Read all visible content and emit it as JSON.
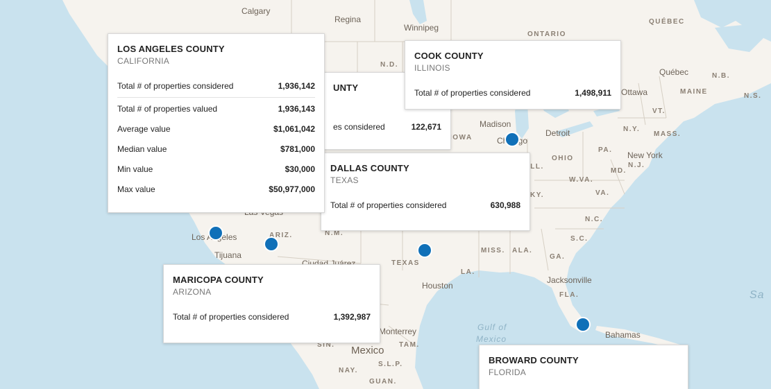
{
  "map_labels": {
    "cities": [
      "Calgary",
      "Regina",
      "Winnipeg",
      "Québec",
      "Ottawa",
      "Madison",
      "Chicago",
      "Detroit",
      "New York",
      "Las Vegas",
      "Los Angeles",
      "Tijuana",
      "Ciudad Juárez",
      "Houston",
      "Monterrey",
      "Jacksonville",
      "Bahamas"
    ],
    "states": [
      "ONTARIO",
      "QUÉBEC",
      "N.D.",
      "N.B.",
      "N.S.",
      "MAINE",
      "VT.",
      "N.Y.",
      "MASS.",
      "PA.",
      "OHIO",
      "N.J.",
      "W.VA.",
      "MD.",
      "VA.",
      "KY.",
      "N.C.",
      "S.C.",
      "GA.",
      "ALA.",
      "MISS.",
      "LA.",
      "FLA.",
      "TEXAS",
      "ARIZ.",
      "N.M.",
      "IOWA",
      "ILL.",
      "TAM.",
      "S.L.P.",
      "NAY.",
      "GUAN.",
      "SIN."
    ],
    "countries": [
      "Mexico"
    ],
    "water": [
      "Gulf of",
      "Mexico",
      "Sa"
    ]
  },
  "tooltips": {
    "la": {
      "county": "LOS ANGELES COUNTY",
      "state": "CALIFORNIA",
      "considered_label": "Total # of properties considered",
      "considered_value": "1,936,142",
      "details": [
        {
          "label": "Total # of properties valued",
          "value": "1,936,143"
        },
        {
          "label": "Average value",
          "value": "$1,061,042"
        },
        {
          "label": "Median value",
          "value": "$781,000"
        },
        {
          "label": "Min value",
          "value": "$30,000"
        },
        {
          "label": "Max value",
          "value": "$50,977,000"
        }
      ]
    },
    "hidden": {
      "county": "UNTY",
      "considered_label": "es considered",
      "considered_value": "122,671"
    },
    "cook": {
      "county": "COOK COUNTY",
      "state": "ILLINOIS",
      "considered_label": "Total # of properties considered",
      "considered_value": "1,498,911"
    },
    "dallas": {
      "county": "DALLAS COUNTY",
      "state": "TEXAS",
      "considered_label": "Total # of properties considered",
      "considered_value": "630,988"
    },
    "maricopa": {
      "county": "MARICOPA COUNTY",
      "state": "ARIZONA",
      "considered_label": "Total # of properties considered",
      "considered_value": "1,392,987"
    },
    "broward": {
      "county": "BROWARD COUNTY",
      "state": "FLORIDA"
    }
  },
  "colors": {
    "water": "#c9e2ee",
    "land": "#f6f3ee",
    "marker": "#1070b8",
    "border": "#d6cfc4"
  }
}
